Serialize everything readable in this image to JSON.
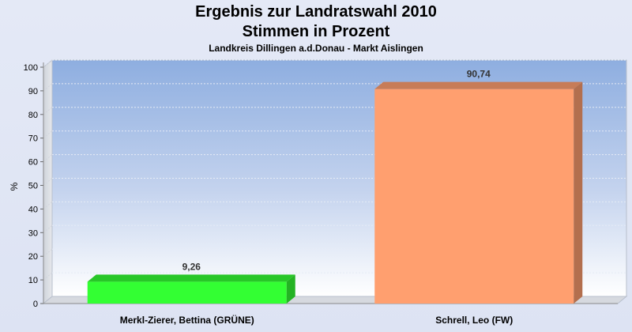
{
  "chart_data": {
    "type": "bar",
    "title": "Ergebnis zur Landratswahl 2010",
    "subtitle": "Stimmen in Prozent",
    "subsubtitle": "Landkreis Dillingen a.d.Donau - Markt Aislingen",
    "ylabel": "%",
    "ylim": [
      0,
      100
    ],
    "yticks": [
      0,
      10,
      20,
      30,
      40,
      50,
      60,
      70,
      80,
      90,
      100
    ],
    "categories": [
      "Merkl-Zierer, Bettina (GRÜNE)",
      "Schrell, Leo (FW)"
    ],
    "values": [
      9.26,
      90.74
    ],
    "value_labels": [
      "9,26",
      "90,74"
    ],
    "colors": [
      "#33ff33",
      "#ff9f6f"
    ],
    "grid": true
  }
}
